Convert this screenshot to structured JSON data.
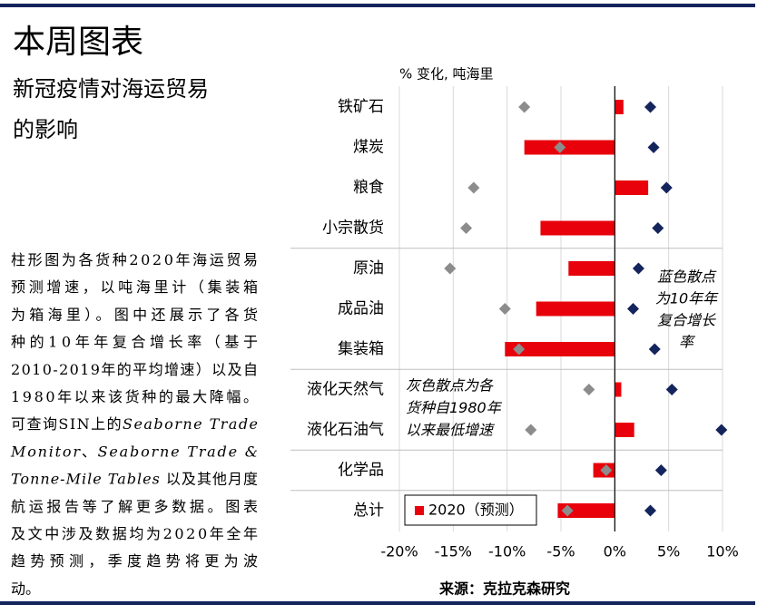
{
  "title": "本周图表",
  "subtitle": [
    "新冠疫情对海运贸易",
    "的影响"
  ],
  "body": [
    [
      {
        "text": "柱形图为各货种2020年海运贸易"
      }
    ],
    [
      {
        "text": "预测增速，以吨海里计（集装箱"
      }
    ],
    [
      {
        "text": "为箱海里）。图中还展示了各货"
      }
    ],
    [
      {
        "text": "种的10年年复合增长率（基于"
      }
    ],
    [
      {
        "text": "2010-2019年的平均增速）以及自"
      }
    ],
    [
      {
        "text": "1980年以来该货种的最大降幅。"
      }
    ],
    [
      {
        "text": "可查询SIN上的"
      },
      {
        "text": "Seaborne Trade",
        "style": "italic"
      }
    ],
    [
      {
        "text": "Monitor",
        "style": "italic"
      },
      {
        "text": "、"
      },
      {
        "text": "Seaborne Trade &",
        "style": "italic"
      }
    ],
    [
      {
        "text": "Tonne-Mile Tables",
        "style": "italic"
      },
      {
        "text": " 以及其他月度"
      }
    ],
    [
      {
        "text": "航运报告等了解更多数据。图表"
      }
    ],
    [
      {
        "text": "及文中涉及数据均为2020年全年"
      }
    ],
    [
      {
        "text": "趋势预测，季度趋势将更为波"
      }
    ],
    [
      {
        "text": "动。"
      }
    ]
  ],
  "chart_data": {
    "type": "hbar",
    "x_label": "% 变化, 吨海里",
    "source": "来源：克拉克森研究",
    "categories": [
      "铁矿石",
      "煤炭",
      "粮食",
      "小宗散货",
      "原油",
      "成品油",
      "集装箱",
      "液化天然气",
      "液化石油气",
      "化学品",
      "总计"
    ],
    "series": [
      {
        "name": "2020（预测）",
        "color": "#e8000b",
        "marker": "bar",
        "values": [
          0.8,
          -8.4,
          3.1,
          -6.9,
          -4.3,
          -7.3,
          -10.2,
          0.6,
          1.8,
          -2.0,
          -5.3
        ]
      },
      {
        "color": "#8c8c8c",
        "marker": "diamond",
        "values": [
          -8.4,
          -5.1,
          -13.1,
          -13.8,
          -15.3,
          -10.2,
          -8.9,
          -2.4,
          -7.8,
          -0.8,
          -4.4
        ]
      },
      {
        "color": "#14245c",
        "marker": "diamond",
        "values": [
          3.3,
          3.6,
          4.8,
          4.0,
          2.2,
          1.7,
          3.7,
          5.3,
          9.9,
          4.3,
          3.3
        ]
      }
    ],
    "xlim": [
      -20,
      10
    ],
    "xticks": [
      {
        "value": -20,
        "label": "-20%"
      },
      {
        "value": -15,
        "label": "-15%"
      },
      {
        "value": -10,
        "label": "-10%"
      },
      {
        "value": -5,
        "label": "-5%"
      },
      {
        "value": 0,
        "label": "0%"
      },
      {
        "value": 5,
        "label": "5%"
      },
      {
        "value": 10,
        "label": "10%"
      }
    ],
    "grid": true,
    "annotations": [
      {
        "lines": [
          "蓝色散点",
          "为10年年",
          "复合增长",
          "率"
        ]
      },
      {
        "lines": [
          "灰色散点为各",
          "货种自1980年",
          "以来最低增速"
        ]
      }
    ]
  }
}
